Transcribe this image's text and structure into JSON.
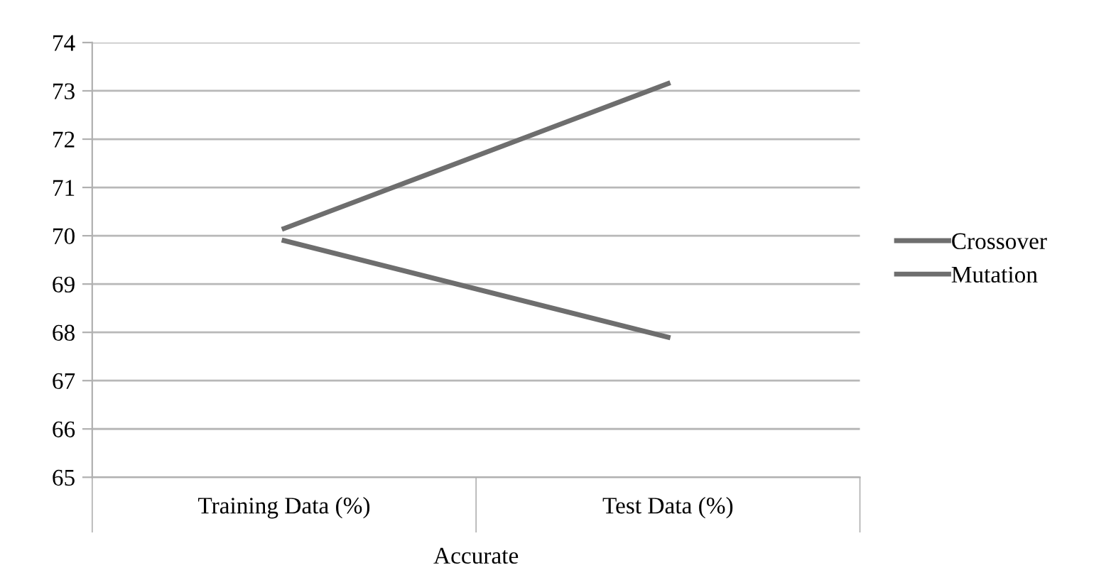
{
  "chart_data": {
    "type": "line",
    "xlabel": "Accurate",
    "categories": [
      "Training Data (%)",
      "Test Data (%)"
    ],
    "series": [
      {
        "name": "Crossover",
        "color": "#6e6e6e",
        "values": [
          70.15,
          73.15
        ]
      },
      {
        "name": "Mutation",
        "color": "#6e6e6e",
        "values": [
          69.9,
          67.9
        ]
      }
    ],
    "ylim": [
      65,
      74
    ],
    "yticks": [
      65,
      66,
      67,
      68,
      69,
      70,
      71,
      72,
      73,
      74
    ],
    "grid": "y",
    "legend": "right",
    "marker": "none",
    "line_style": "solid"
  }
}
